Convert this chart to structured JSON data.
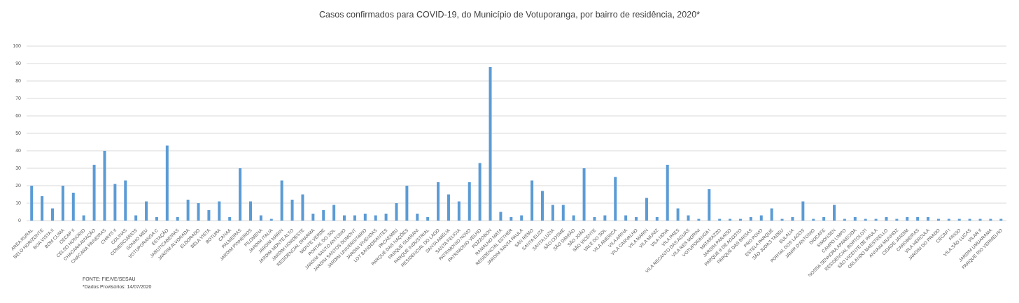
{
  "chart_data": {
    "type": "bar",
    "title": "Casos confirmados para COVID-19, do Município de Votuporanga, por bairro de residência, 2020*",
    "categories": [
      "AREA RURAL",
      "BELO HORIZONTE",
      "BOA VISTA II",
      "BOM CLIMA",
      "CECAP II",
      "CELSO HONORIO",
      "CHACARA AVIAÇÃO",
      "CHACARA PAINEIRAS",
      "CHRYS II",
      "COLINAS",
      "COMERCIÁRIOS",
      "SONHO MEU",
      "VOTUPORANGA C",
      "ESTAÇÃO",
      "JABUTICABEIRAS",
      "JARDIM ALVORADA",
      "ELDORADO",
      "BELA VISTA",
      "BOTURA",
      "CANAA",
      "PALMEIRAS",
      "JARDIM PINHEIROS",
      "FILOMENA",
      "JARDIM ITALIA",
      "JARDIM MARIN",
      "JARDIM MONTE ALTO",
      "JARDIM NORDESTE",
      "RESIDENCIAL DHARMA",
      "MONTE VERDE",
      "PORTAL DO SOL",
      "JARDIM SANTO ANTONIO",
      "JARDIM SANTOS DUMONT",
      "JARDIM UNIVERSITARIO",
      "JARDIM VIVENDAS",
      "LOT BANDEIRANTES",
      "PACAEMBU",
      "PARQUE DAS NAÇÕES",
      "PARQUE GUARANI",
      "PARQUE INDUSTRIAL",
      "RESIDENCIAL DO LAGO",
      "SANTA AMELIA",
      "SANTA FELICIA",
      "PATRIMONIO NOVO",
      "PATRIMONIO VELHO",
      "POZZOBON",
      "RAMALHO MATA",
      "RESIDENCIAL ESTHER",
      "JARDIM SANTA PAULA",
      "SAN REMO",
      "SANTA ELIZA",
      "SANTA LUZIA",
      "SÃO COSME",
      "SÃO DAMIÃO",
      "SÃO JOÃO",
      "SÃO VICENTE",
      "VALE DO SOL",
      "VILA AMERICA",
      "VILA ARINA",
      "VILA CARVALHO",
      "VILA MARIN",
      "VILA MUNIZ",
      "VILA NOVA",
      "VILA PAES",
      "VILA RECANTO DAS AGUAS",
      "VILA RES MORINI",
      "VOTUPORANGA I",
      "MATARAZZO",
      "JARDIM PARAISO",
      "PARQUE 8 DE AGOSTO",
      "PARQUE DAS BRISAS",
      "PRO POVO",
      "ESTELA PARQUE",
      "SÃO JUDAS TADEU",
      "EULALIA",
      "PORTAL DOS LAGOS",
      "JAMIR D'ANTONIO",
      "DIOCAFE",
      "SIMONSEN",
      "CAMPO LIMPO",
      "NOSSA SENHORA APARECIDA",
      "RESIDENCIAL BORTOLOTI",
      "SÃO VICENTE DE PAULA",
      "ORLANDO MAESTRELLO",
      "ANNAIM MUNHOZ",
      "CIDADE JARDIM",
      "CAROBEIRAS",
      "VILA HERCULA",
      "JARDIM DO PRADO",
      "CECAP I",
      "FRIGO",
      "VILA SÃO LUCAS",
      "VILAR II",
      "JARDIM UMUARAMA",
      "PARQUE RIO VERMELHO"
    ],
    "values": [
      20,
      14,
      7,
      20,
      16,
      3,
      32,
      40,
      21,
      23,
      3,
      11,
      2,
      43,
      2,
      12,
      10,
      6,
      11,
      2,
      30,
      11,
      3,
      1,
      23,
      12,
      15,
      4,
      6,
      9,
      3,
      3,
      4,
      3,
      4,
      10,
      20,
      4,
      2,
      22,
      15,
      11,
      22,
      33,
      88,
      5,
      2,
      3,
      23,
      17,
      9,
      9,
      3,
      30,
      2,
      3,
      25,
      3,
      2,
      13,
      2,
      32,
      7,
      3,
      1,
      18,
      1,
      1,
      1,
      2,
      3,
      7,
      1,
      2,
      11,
      1,
      2,
      9,
      1,
      2,
      1,
      1,
      2,
      1,
      2,
      2,
      2,
      1,
      1,
      1,
      1,
      1,
      1,
      1
    ],
    "color": "#5b9bd5",
    "ylim": [
      0,
      100
    ],
    "yticks": [
      0,
      10,
      20,
      30,
      40,
      50,
      60,
      70,
      80,
      90,
      100
    ],
    "grid": "y",
    "annotations": [
      "FONTE: FIE/VE/SESAU",
      "*Dados Provisórios: 14/07/2020"
    ]
  }
}
